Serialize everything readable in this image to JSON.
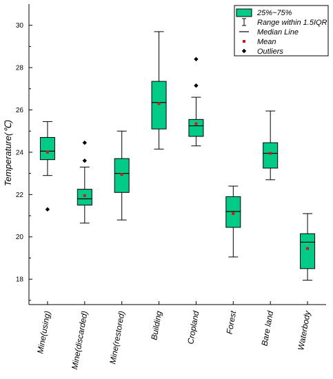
{
  "chart_data": {
    "type": "box",
    "ylabel": "Temperature(℃)",
    "ylim": [
      16.8,
      31.0
    ],
    "yticks": [
      18,
      20,
      22,
      24,
      26,
      28,
      30
    ],
    "ytick_labels": [
      "18",
      "20",
      "22",
      "24",
      "26",
      "28",
      "30"
    ],
    "grid": false,
    "box_color": "#00cc88",
    "mean_color": "#dd1111",
    "legend": {
      "placement": "top-right",
      "entries": [
        "25%~75%",
        "Range within 1.5IQR",
        "Median Line",
        "Mean",
        "Outliers"
      ]
    },
    "categories": [
      "Mine(using)",
      "Mine(discarded)",
      "Mine(restored)",
      "Building",
      "Cropland",
      "Forest",
      "Bare land",
      "Waterbody"
    ],
    "boxes": [
      {
        "category": "Mine(using)",
        "whisker_low": 22.9,
        "q1": 23.65,
        "median": 24.05,
        "q3": 24.7,
        "whisker_high": 25.45,
        "mean": 24.0,
        "outliers": [
          21.3
        ]
      },
      {
        "category": "Mine(discarded)",
        "whisker_low": 20.65,
        "q1": 21.5,
        "median": 21.8,
        "q3": 22.25,
        "whisker_high": 23.3,
        "mean": 21.95,
        "outliers": [
          23.6,
          24.45
        ]
      },
      {
        "category": "Mine(restored)",
        "whisker_low": 20.8,
        "q1": 22.1,
        "median": 23.0,
        "q3": 23.7,
        "whisker_high": 25.0,
        "mean": 22.95,
        "outliers": []
      },
      {
        "category": "Building",
        "whisker_low": 24.15,
        "q1": 25.1,
        "median": 26.35,
        "q3": 27.35,
        "whisker_high": 29.7,
        "mean": 26.3,
        "outliers": []
      },
      {
        "category": "Cropland",
        "whisker_low": 24.3,
        "q1": 24.75,
        "median": 25.25,
        "q3": 25.55,
        "whisker_high": 26.6,
        "mean": 25.35,
        "outliers": [
          27.15,
          28.4
        ]
      },
      {
        "category": "Forest",
        "whisker_low": 19.05,
        "q1": 20.45,
        "median": 21.2,
        "q3": 21.9,
        "whisker_high": 22.4,
        "mean": 21.1,
        "outliers": []
      },
      {
        "category": "Bare land",
        "whisker_low": 22.7,
        "q1": 23.25,
        "median": 23.95,
        "q3": 24.45,
        "whisker_high": 25.95,
        "mean": 23.95,
        "outliers": []
      },
      {
        "category": "Waterbody",
        "whisker_low": 17.95,
        "q1": 18.5,
        "median": 19.75,
        "q3": 20.15,
        "whisker_high": 21.1,
        "mean": 19.45,
        "outliers": []
      }
    ]
  }
}
